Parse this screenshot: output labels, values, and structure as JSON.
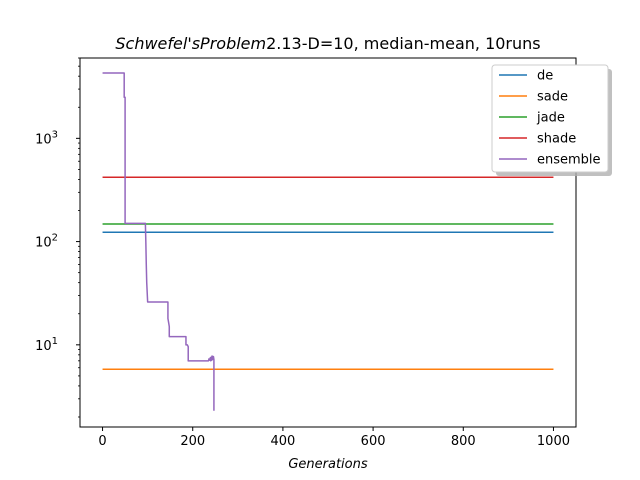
{
  "chart_data": {
    "type": "line",
    "title_italic": "Schwefel'sProblem",
    "title_rest": "2.13-D=10, median-mean, 10runs",
    "xlabel": "Generations",
    "ylabel": "",
    "xlim": [
      -50,
      1050
    ],
    "ylim": [
      1.6,
      6000
    ],
    "yscale": "log",
    "xticks": [
      0,
      200,
      400,
      600,
      800,
      1000
    ],
    "xtick_labels": [
      "0",
      "200",
      "400",
      "600",
      "800",
      "1000"
    ],
    "yticks": [
      10,
      100,
      1000
    ],
    "ytick_labels": [
      "10",
      "10",
      "10"
    ],
    "ytick_exponents": [
      "1",
      "2",
      "3"
    ],
    "legend_position": "top-right",
    "grid": false,
    "series": [
      {
        "name": "de",
        "color": "#1f77b4",
        "x": [
          0,
          1000
        ],
        "y": [
          123,
          123
        ]
      },
      {
        "name": "sade",
        "color": "#ff7f0e",
        "x": [
          0,
          1000
        ],
        "y": [
          5.8,
          5.8
        ]
      },
      {
        "name": "jade",
        "color": "#2ca02c",
        "x": [
          0,
          1000
        ],
        "y": [
          148,
          148
        ]
      },
      {
        "name": "shade",
        "color": "#d62728",
        "x": [
          0,
          1000
        ],
        "y": [
          420,
          420
        ]
      },
      {
        "name": "ensemble",
        "color": "#9467bd",
        "x": [
          0,
          48,
          48,
          50,
          50,
          95,
          96,
          97,
          98,
          100,
          145,
          145,
          147,
          148,
          148,
          150,
          185,
          185,
          188,
          190,
          190,
          235,
          236,
          238,
          239,
          240,
          241,
          242,
          243,
          244,
          246,
          247,
          247
        ],
        "y": [
          4300,
          4300,
          2500,
          2500,
          150,
          150,
          100,
          60,
          40,
          26,
          26,
          18,
          16,
          15,
          12,
          12,
          12,
          10,
          10,
          9.6,
          7,
          7,
          7.3,
          7.1,
          7.5,
          7,
          7.6,
          7.1,
          7.8,
          7.2,
          7.7,
          7.2,
          2.3
        ]
      }
    ]
  }
}
